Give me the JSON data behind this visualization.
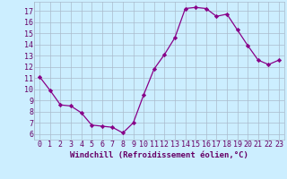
{
  "x": [
    0,
    1,
    2,
    3,
    4,
    5,
    6,
    7,
    8,
    9,
    10,
    11,
    12,
    13,
    14,
    15,
    16,
    17,
    18,
    19,
    20,
    21,
    22,
    23
  ],
  "y": [
    11.1,
    9.9,
    8.6,
    8.5,
    7.9,
    6.8,
    6.7,
    6.6,
    6.1,
    7.0,
    9.5,
    11.8,
    13.1,
    14.6,
    17.2,
    17.3,
    17.2,
    16.5,
    16.7,
    15.3,
    13.9,
    12.6,
    12.2,
    12.6
  ],
  "line_color": "#880088",
  "marker": "D",
  "marker_size": 2.2,
  "bg_color": "#cceeff",
  "grid_color": "#aabbcc",
  "xlabel": "Windchill (Refroidissement éolien,°C)",
  "ylim": [
    5.5,
    17.8
  ],
  "xlim": [
    -0.5,
    23.5
  ],
  "yticks": [
    6,
    7,
    8,
    9,
    10,
    11,
    12,
    13,
    14,
    15,
    16,
    17
  ],
  "xticks": [
    0,
    1,
    2,
    3,
    4,
    5,
    6,
    7,
    8,
    9,
    10,
    11,
    12,
    13,
    14,
    15,
    16,
    17,
    18,
    19,
    20,
    21,
    22,
    23
  ],
  "xlabel_fontsize": 6.5,
  "tick_fontsize": 6.0,
  "label_color": "#660066"
}
